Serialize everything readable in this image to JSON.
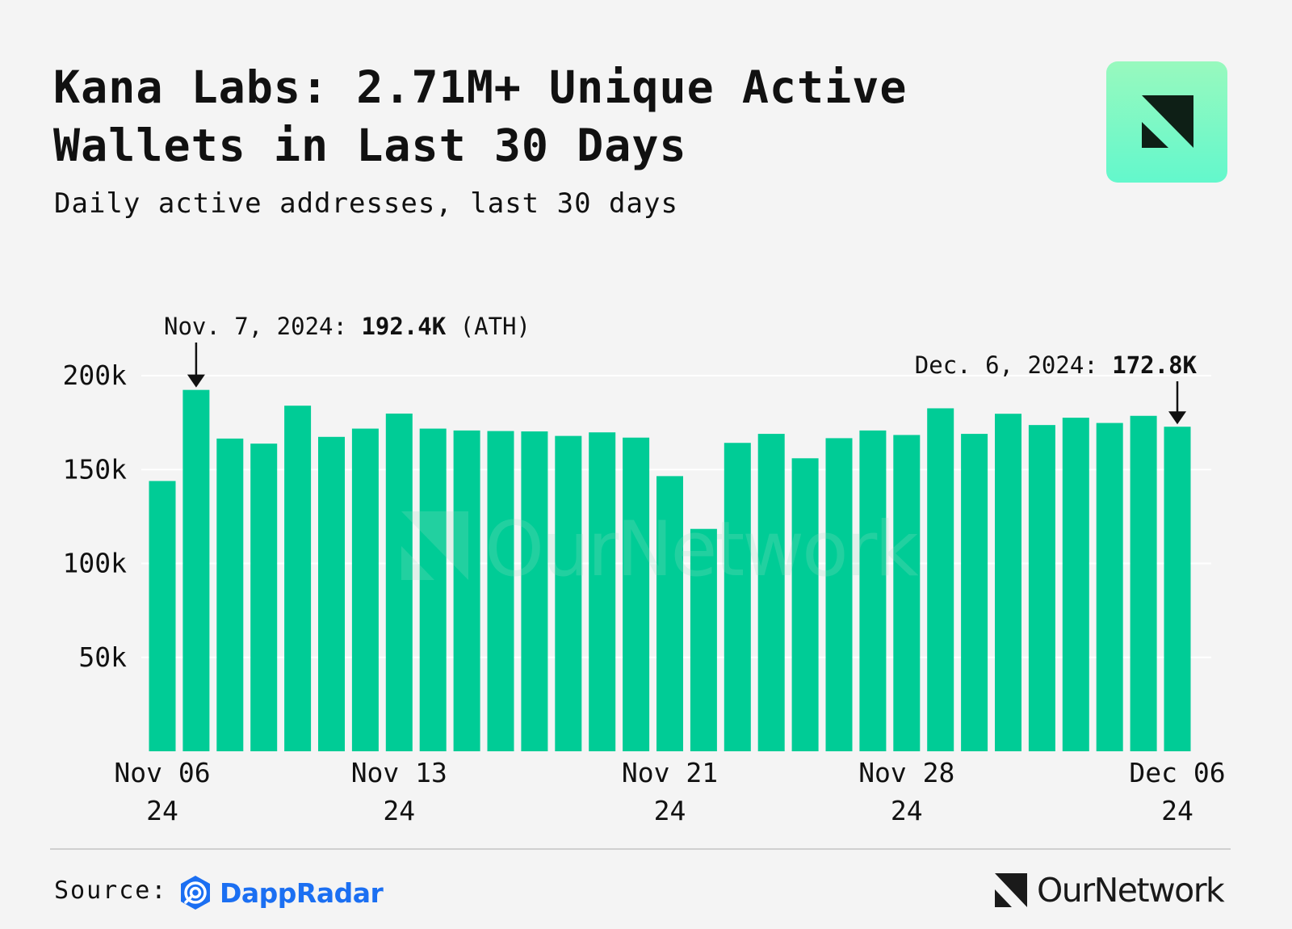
{
  "header": {
    "title_line1": "Kana Labs: 2.71M+ Unique Active",
    "title_line2": "Wallets in Last 30 Days",
    "subtitle": "Daily active addresses, last 30 days"
  },
  "footer": {
    "source_label": "Source:",
    "source_name": "DappRadar",
    "brand": "OurNetwork"
  },
  "colors": {
    "bar": "#00cc96",
    "background": "#f4f4f4",
    "gridline": "#ffffff",
    "text": "#111111",
    "dappradar_blue": "#1b6ff2",
    "watermark": "#9cdfc4"
  },
  "chart_data": {
    "type": "bar",
    "title": "Kana Labs: 2.71M+ Unique Active Wallets in Last 30 Days",
    "subtitle": "Daily active addresses, last 30 days",
    "xlabel": "",
    "ylabel": "",
    "ylim": [
      0,
      200000
    ],
    "yticks": [
      50000,
      100000,
      150000,
      200000
    ],
    "ytick_labels": [
      "50k",
      "100k",
      "150k",
      "200k"
    ],
    "categories": [
      "Nov 06",
      "Nov 07",
      "Nov 08",
      "Nov 09",
      "Nov 10",
      "Nov 11",
      "Nov 12",
      "Nov 13",
      "Nov 14",
      "Nov 15",
      "Nov 16",
      "Nov 17",
      "Nov 18",
      "Nov 19",
      "Nov 20",
      "Nov 21",
      "Nov 22",
      "Nov 23",
      "Nov 24",
      "Nov 25",
      "Nov 26",
      "Nov 27",
      "Nov 28",
      "Nov 29",
      "Nov 30",
      "Dec 01",
      "Dec 02",
      "Dec 03",
      "Dec 04",
      "Dec 05",
      "Dec 06"
    ],
    "values": [
      143900,
      192400,
      166500,
      163800,
      184000,
      167400,
      171800,
      179800,
      171800,
      170800,
      170500,
      170300,
      167900,
      169800,
      167000,
      146500,
      118400,
      164200,
      169000,
      156000,
      166700,
      170800,
      168400,
      182600,
      169000,
      179700,
      173700,
      177600,
      174800,
      178600,
      172800
    ],
    "xtick_labels": [
      {
        "index": 0,
        "line1": "Nov 06",
        "line2": "24"
      },
      {
        "index": 7,
        "line1": "Nov 13",
        "line2": "24"
      },
      {
        "index": 15,
        "line1": "Nov 21",
        "line2": "24"
      },
      {
        "index": 22,
        "line1": "Nov 28",
        "line2": "24"
      },
      {
        "index": 30,
        "line1": "Dec 06",
        "line2": "24"
      }
    ],
    "annotations": [
      {
        "index": 1,
        "label": "Nov. 7, 2024: ",
        "value_text": "192.4K",
        "suffix": " (ATH)"
      },
      {
        "index": 30,
        "label": "Dec. 6, 2024: ",
        "value_text": "172.8K",
        "suffix": ""
      }
    ],
    "watermark": "OurNetwork",
    "grid": true
  }
}
